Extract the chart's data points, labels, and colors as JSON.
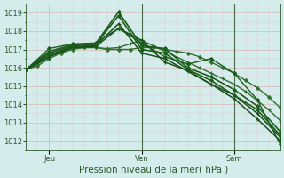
{
  "background_color": "#d4ecec",
  "grid_color_major": "#e8c8c8",
  "grid_color_minor": "#e8d8d8",
  "xlabel": "Pression niveau de la mer( hPa )",
  "xtick_labels": [
    "Jeu",
    "Ven",
    "Sam"
  ],
  "xtick_positions": [
    2,
    10,
    18
  ],
  "ylim": [
    1011.5,
    1019.5
  ],
  "yticks": [
    1012,
    1013,
    1014,
    1015,
    1016,
    1017,
    1018,
    1019
  ],
  "xlim": [
    0,
    22
  ],
  "series": [
    {
      "x": [
        0,
        1,
        2,
        3,
        4,
        5,
        6,
        7,
        8,
        9,
        10,
        11,
        12,
        13,
        14,
        15,
        16,
        17,
        18,
        19,
        20,
        21,
        22
      ],
      "y": [
        1015.9,
        1016.1,
        1016.5,
        1016.8,
        1017.0,
        1017.1,
        1017.1,
        1017.0,
        1017.0,
        1017.0,
        1017.1,
        1017.1,
        1017.0,
        1016.9,
        1016.8,
        1016.6,
        1016.3,
        1016.0,
        1015.7,
        1015.3,
        1014.9,
        1014.4,
        1013.8
      ],
      "color": "#2d6e2d",
      "lw": 1.0,
      "marker": "P",
      "ms": 2.5,
      "mew": 0.7
    },
    {
      "x": [
        0,
        1,
        2,
        3,
        4,
        5,
        6,
        7,
        8,
        9,
        10,
        11,
        12,
        13,
        14,
        15,
        16,
        17,
        18,
        19,
        20,
        21,
        22
      ],
      "y": [
        1015.9,
        1016.2,
        1016.6,
        1016.9,
        1017.05,
        1017.1,
        1017.1,
        1017.05,
        1017.1,
        1017.3,
        1017.5,
        1017.2,
        1016.9,
        1016.6,
        1016.3,
        1016.0,
        1015.7,
        1015.4,
        1015.1,
        1014.7,
        1014.2,
        1013.7,
        1013.1
      ],
      "color": "#2d6e2d",
      "lw": 1.0,
      "marker": "+",
      "ms": 3.5,
      "mew": 0.8
    },
    {
      "x": [
        0,
        2,
        4,
        6,
        8,
        10,
        12,
        14,
        16,
        18,
        20,
        22
      ],
      "y": [
        1015.9,
        1016.6,
        1017.1,
        1017.15,
        1018.15,
        1017.5,
        1016.3,
        1015.85,
        1015.1,
        1014.5,
        1013.5,
        1012.2
      ],
      "color": "#1a4f1a",
      "lw": 1.1,
      "marker": "+",
      "ms": 3.5,
      "mew": 0.9
    },
    {
      "x": [
        0,
        2,
        4,
        6,
        8,
        10,
        12,
        14,
        16,
        18,
        20,
        22
      ],
      "y": [
        1015.9,
        1016.7,
        1017.15,
        1017.2,
        1018.4,
        1016.8,
        1016.5,
        1015.8,
        1015.1,
        1014.3,
        1013.2,
        1012.0
      ],
      "color": "#1a4f1a",
      "lw": 1.1,
      "marker": "+",
      "ms": 3.5,
      "mew": 0.9
    },
    {
      "x": [
        0,
        2,
        4,
        6,
        8,
        10,
        12,
        14,
        16,
        18,
        20,
        22
      ],
      "y": [
        1015.9,
        1016.8,
        1017.2,
        1017.25,
        1018.85,
        1017.0,
        1016.8,
        1015.9,
        1015.3,
        1014.5,
        1013.7,
        1012.3
      ],
      "color": "#1a5c1a",
      "lw": 1.2,
      "marker": "D",
      "ms": 2.0,
      "mew": 0.7
    },
    {
      "x": [
        0,
        2,
        4,
        6,
        8,
        10,
        12,
        14,
        16,
        18,
        20,
        22
      ],
      "y": [
        1015.9,
        1016.9,
        1017.25,
        1017.3,
        1019.05,
        1017.2,
        1017.05,
        1016.0,
        1015.5,
        1014.8,
        1013.9,
        1012.5
      ],
      "color": "#1a5c1a",
      "lw": 1.2,
      "marker": "D",
      "ms": 2.0,
      "mew": 0.7
    },
    {
      "x": [
        0,
        2,
        4,
        6,
        8,
        10,
        12,
        14,
        16,
        18,
        20,
        22
      ],
      "y": [
        1015.9,
        1017.05,
        1017.3,
        1017.35,
        1018.15,
        1017.35,
        1016.6,
        1016.2,
        1016.5,
        1015.7,
        1014.25,
        1011.8
      ],
      "color": "#1a5c1a",
      "lw": 1.0,
      "marker": "D",
      "ms": 2.0,
      "mew": 0.7
    }
  ],
  "vline_color": "#4a6a4a",
  "vline_positions": [
    10,
    18
  ],
  "tick_color": "#2d5a2d",
  "tick_fontsize": 6.0,
  "xlabel_fontsize": 7.5
}
